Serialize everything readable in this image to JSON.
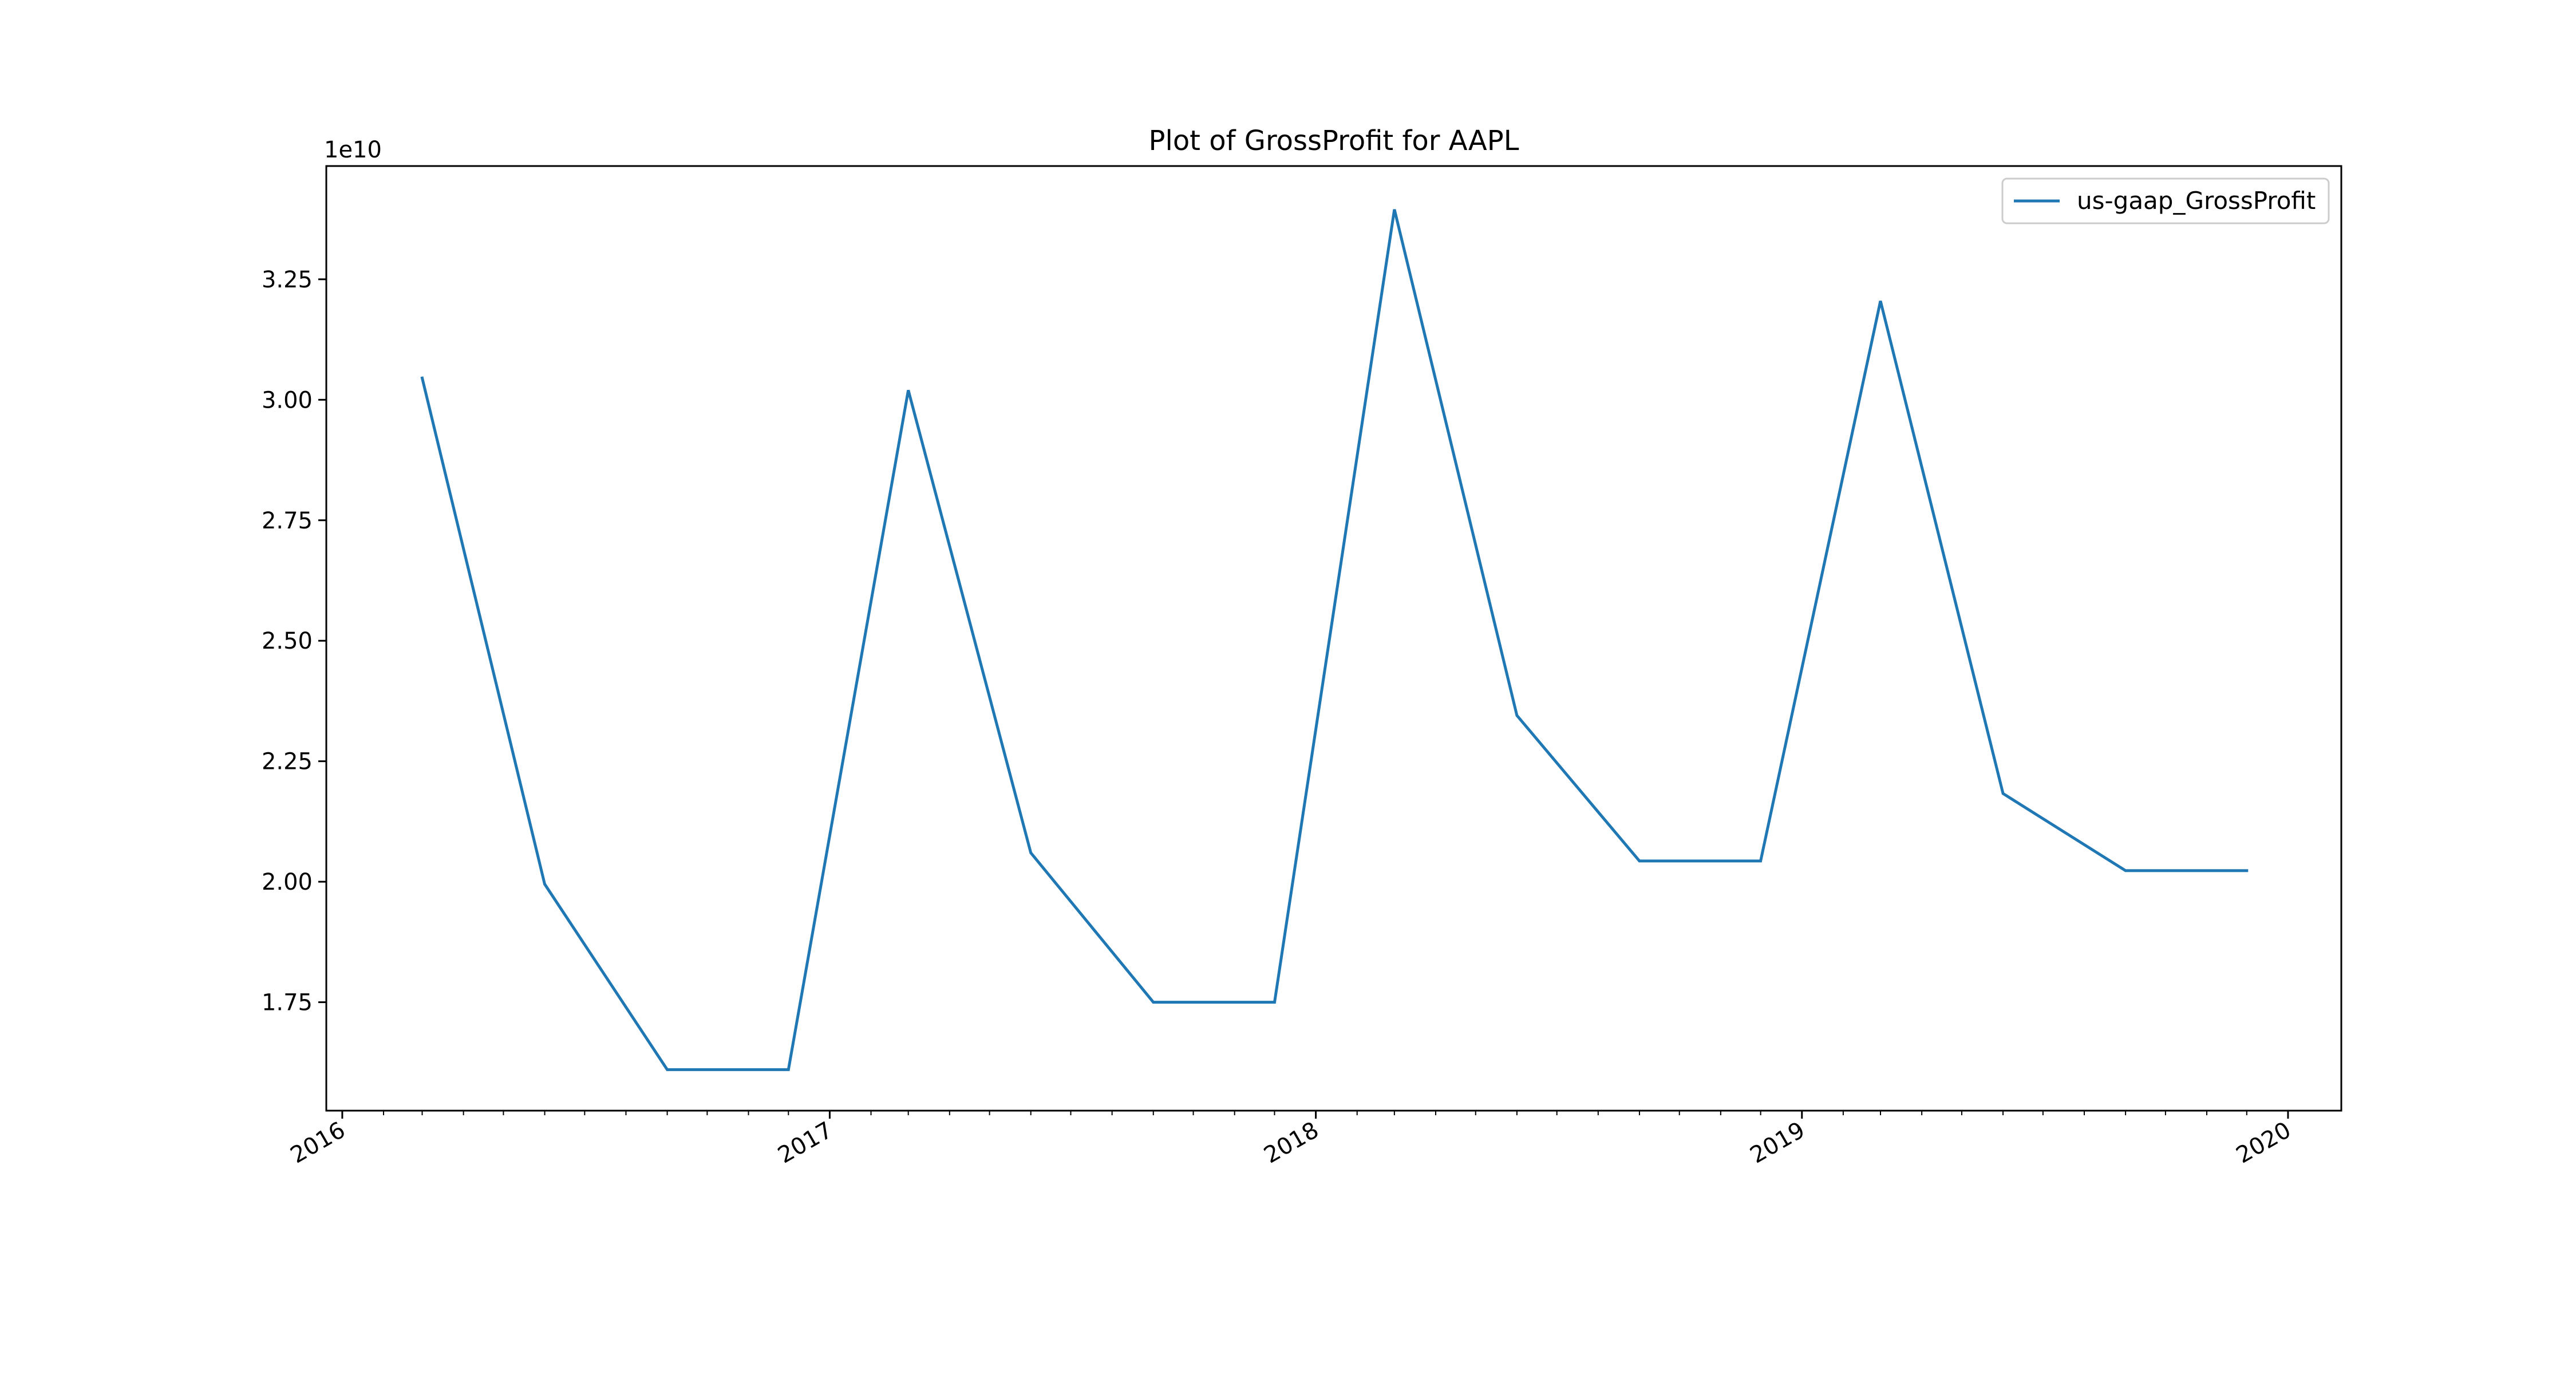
{
  "chart_data": {
    "type": "line",
    "title": "Plot of GrossProfit for AAPL",
    "xlabel": "",
    "ylabel": "",
    "y_offset_label": "1e10",
    "y_scale": 10000000000.0,
    "x_is_date": true,
    "xlim": [
      "2015-12-20",
      "2020-02-10"
    ],
    "ylim": [
      1.525,
      3.485
    ],
    "x_ticks": [
      {
        "date": "2016-01-01",
        "label": "2016"
      },
      {
        "date": "2017-01-01",
        "label": "2017"
      },
      {
        "date": "2018-01-01",
        "label": "2018"
      },
      {
        "date": "2019-01-01",
        "label": "2019"
      },
      {
        "date": "2020-01-01",
        "label": "2020"
      }
    ],
    "y_ticks": [
      {
        "value": 1.75,
        "label": "1.75"
      },
      {
        "value": 2.0,
        "label": "2.00"
      },
      {
        "value": 2.25,
        "label": "2.25"
      },
      {
        "value": 2.5,
        "label": "2.50"
      },
      {
        "value": 2.75,
        "label": "2.75"
      },
      {
        "value": 3.0,
        "label": "3.00"
      },
      {
        "value": 3.25,
        "label": "3.25"
      }
    ],
    "grid": false,
    "legend_position": "top-right",
    "series": [
      {
        "name": "us-gaap_GrossProfit",
        "color": "#1f77b4",
        "points": [
          {
            "x": "2016-03-01",
            "y": 3.045
          },
          {
            "x": "2016-06-01",
            "y": 1.995
          },
          {
            "x": "2016-09-01",
            "y": 1.61
          },
          {
            "x": "2016-12-01",
            "y": 1.61
          },
          {
            "x": "2017-03-01",
            "y": 3.02
          },
          {
            "x": "2017-06-01",
            "y": 2.06
          },
          {
            "x": "2017-09-01",
            "y": 1.75
          },
          {
            "x": "2017-12-01",
            "y": 1.75
          },
          {
            "x": "2018-03-01",
            "y": 3.395
          },
          {
            "x": "2018-06-01",
            "y": 2.345
          },
          {
            "x": "2018-09-01",
            "y": 2.043
          },
          {
            "x": "2018-12-01",
            "y": 2.043
          },
          {
            "x": "2019-03-01",
            "y": 3.205
          },
          {
            "x": "2019-06-01",
            "y": 2.183
          },
          {
            "x": "2019-09-01",
            "y": 2.023
          },
          {
            "x": "2019-12-01",
            "y": 2.023
          }
        ]
      }
    ]
  }
}
